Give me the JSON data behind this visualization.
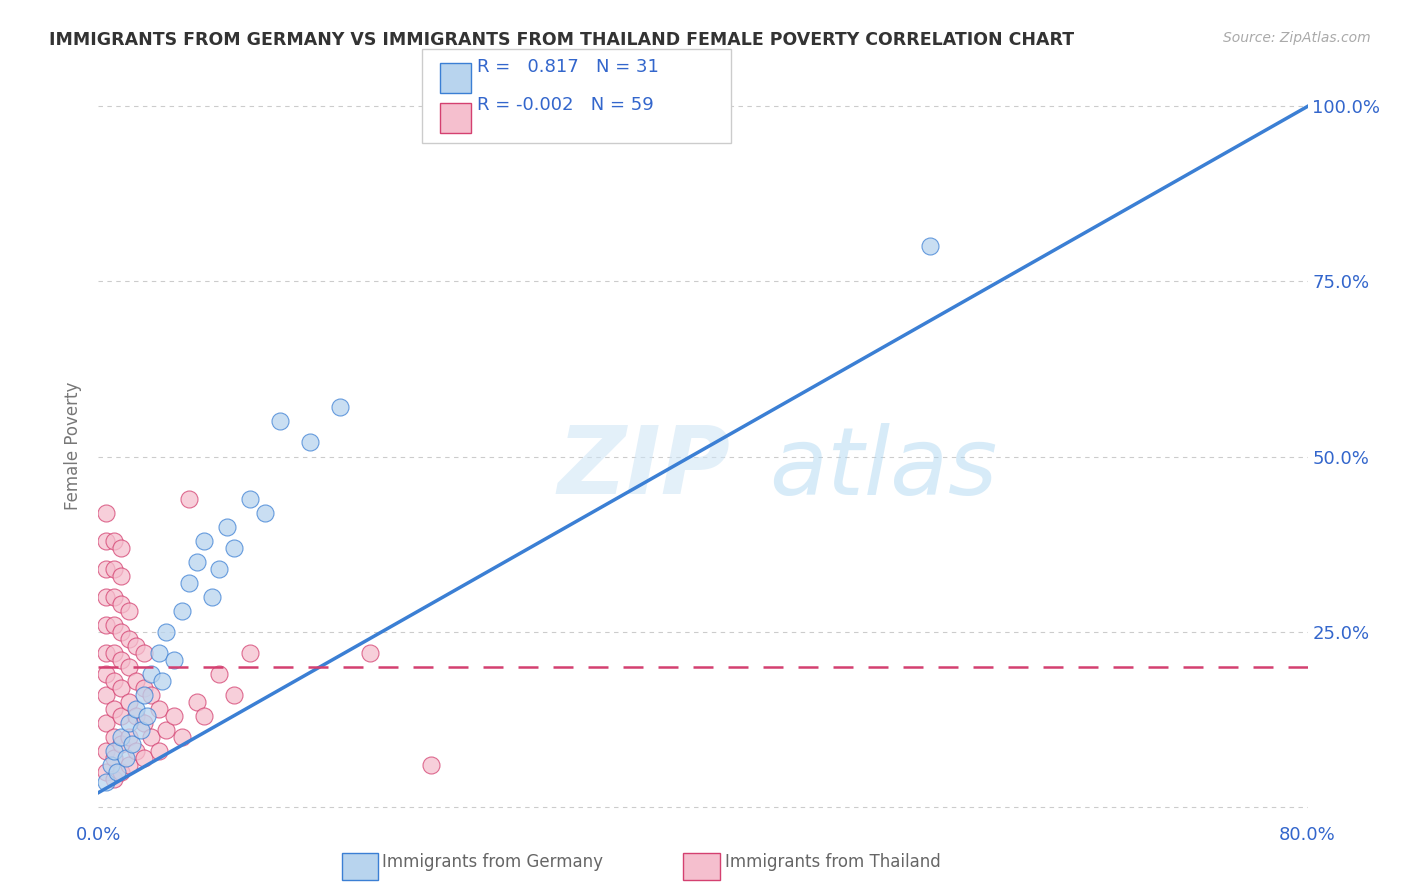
{
  "title": "IMMIGRANTS FROM GERMANY VS IMMIGRANTS FROM THAILAND FEMALE POVERTY CORRELATION CHART",
  "source": "Source: ZipAtlas.com",
  "ylabel": "Female Poverty",
  "xlim": [
    0.0,
    0.8
  ],
  "ylim": [
    -0.02,
    1.05
  ],
  "xtick_positions": [
    0.0,
    0.2,
    0.4,
    0.6,
    0.8
  ],
  "xticklabels": [
    "0.0%",
    "",
    "",
    "",
    "80.0%"
  ],
  "ytick_positions": [
    0.0,
    0.25,
    0.5,
    0.75,
    1.0
  ],
  "yticklabels": [
    "",
    "25.0%",
    "50.0%",
    "75.0%",
    "100.0%"
  ],
  "germany_R": 0.817,
  "germany_N": 31,
  "thailand_R": -0.002,
  "thailand_N": 59,
  "germany_color": "#b8d4ee",
  "thailand_color": "#f5bfce",
  "germany_line_color": "#3b7fd4",
  "thailand_line_color": "#d44070",
  "watermark_zip": "ZIP",
  "watermark_atlas": "atlas",
  "background_color": "#ffffff",
  "grid_color": "#cccccc",
  "legend_text_color": "#3366cc",
  "title_color": "#333333",
  "germany_line": {
    "x0": 0.0,
    "y0": 0.02,
    "x1": 0.8,
    "y1": 1.0
  },
  "thailand_line": {
    "x0": 0.0,
    "y0": 0.2,
    "x1": 0.8,
    "y1": 0.2
  },
  "germany_scatter": [
    [
      0.005,
      0.035
    ],
    [
      0.008,
      0.06
    ],
    [
      0.01,
      0.08
    ],
    [
      0.012,
      0.05
    ],
    [
      0.015,
      0.1
    ],
    [
      0.018,
      0.07
    ],
    [
      0.02,
      0.12
    ],
    [
      0.022,
      0.09
    ],
    [
      0.025,
      0.14
    ],
    [
      0.028,
      0.11
    ],
    [
      0.03,
      0.16
    ],
    [
      0.032,
      0.13
    ],
    [
      0.035,
      0.19
    ],
    [
      0.04,
      0.22
    ],
    [
      0.042,
      0.18
    ],
    [
      0.045,
      0.25
    ],
    [
      0.05,
      0.21
    ],
    [
      0.055,
      0.28
    ],
    [
      0.06,
      0.32
    ],
    [
      0.065,
      0.35
    ],
    [
      0.07,
      0.38
    ],
    [
      0.075,
      0.3
    ],
    [
      0.08,
      0.34
    ],
    [
      0.085,
      0.4
    ],
    [
      0.09,
      0.37
    ],
    [
      0.1,
      0.44
    ],
    [
      0.11,
      0.42
    ],
    [
      0.12,
      0.55
    ],
    [
      0.14,
      0.52
    ],
    [
      0.16,
      0.57
    ],
    [
      0.55,
      0.8
    ]
  ],
  "thailand_scatter": [
    [
      0.005,
      0.05
    ],
    [
      0.005,
      0.08
    ],
    [
      0.005,
      0.12
    ],
    [
      0.005,
      0.16
    ],
    [
      0.005,
      0.19
    ],
    [
      0.005,
      0.22
    ],
    [
      0.005,
      0.26
    ],
    [
      0.005,
      0.3
    ],
    [
      0.005,
      0.34
    ],
    [
      0.005,
      0.38
    ],
    [
      0.005,
      0.42
    ],
    [
      0.01,
      0.04
    ],
    [
      0.01,
      0.07
    ],
    [
      0.01,
      0.1
    ],
    [
      0.01,
      0.14
    ],
    [
      0.01,
      0.18
    ],
    [
      0.01,
      0.22
    ],
    [
      0.01,
      0.26
    ],
    [
      0.01,
      0.3
    ],
    [
      0.01,
      0.34
    ],
    [
      0.01,
      0.38
    ],
    [
      0.015,
      0.05
    ],
    [
      0.015,
      0.09
    ],
    [
      0.015,
      0.13
    ],
    [
      0.015,
      0.17
    ],
    [
      0.015,
      0.21
    ],
    [
      0.015,
      0.25
    ],
    [
      0.015,
      0.29
    ],
    [
      0.015,
      0.33
    ],
    [
      0.015,
      0.37
    ],
    [
      0.02,
      0.06
    ],
    [
      0.02,
      0.1
    ],
    [
      0.02,
      0.15
    ],
    [
      0.02,
      0.2
    ],
    [
      0.02,
      0.24
    ],
    [
      0.02,
      0.28
    ],
    [
      0.025,
      0.08
    ],
    [
      0.025,
      0.13
    ],
    [
      0.025,
      0.18
    ],
    [
      0.025,
      0.23
    ],
    [
      0.03,
      0.07
    ],
    [
      0.03,
      0.12
    ],
    [
      0.03,
      0.17
    ],
    [
      0.03,
      0.22
    ],
    [
      0.035,
      0.1
    ],
    [
      0.035,
      0.16
    ],
    [
      0.04,
      0.08
    ],
    [
      0.04,
      0.14
    ],
    [
      0.045,
      0.11
    ],
    [
      0.05,
      0.13
    ],
    [
      0.055,
      0.1
    ],
    [
      0.06,
      0.44
    ],
    [
      0.065,
      0.15
    ],
    [
      0.07,
      0.13
    ],
    [
      0.08,
      0.19
    ],
    [
      0.09,
      0.16
    ],
    [
      0.1,
      0.22
    ],
    [
      0.18,
      0.22
    ],
    [
      0.22,
      0.06
    ]
  ]
}
